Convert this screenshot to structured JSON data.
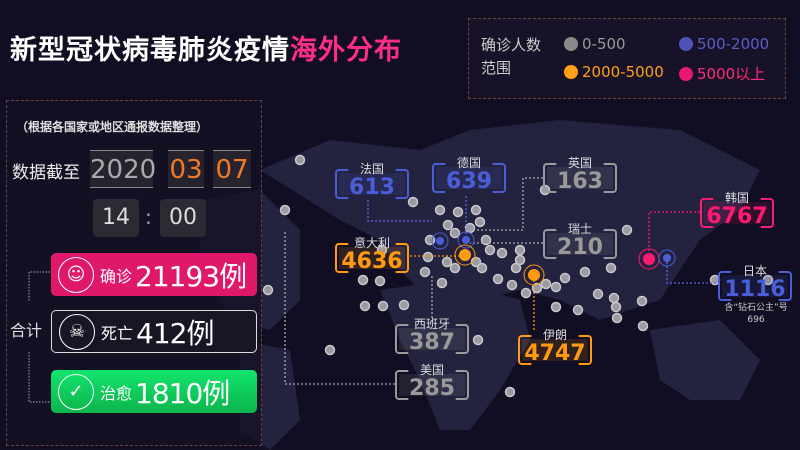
{
  "title": {
    "main": "新型冠状病毒肺炎疫情",
    "highlight": "海外分布"
  },
  "legend": {
    "label": "确诊人数范围",
    "items": [
      {
        "range": "0-500",
        "color": "#8a8a8a"
      },
      {
        "range": "500-2000",
        "color": "#4f52b8"
      },
      {
        "range": "2000-5000",
        "color": "#ffa117"
      },
      {
        "range": "5000以上",
        "color": "#e5196f"
      }
    ]
  },
  "summary": {
    "note": "（根据各国家或地区通报数据整理）",
    "as_of_label": "数据截至",
    "year": "2020",
    "month": "03",
    "day": "07",
    "hour": "14",
    "minute": "00",
    "time_sep": ":",
    "total_label": "合计",
    "confirmed": {
      "label": "确诊",
      "value": "21193例",
      "icon": "patient-face-icon",
      "color": "#e0186a"
    },
    "deaths": {
      "label": "死亡",
      "value": "412例",
      "icon": "skull-icon"
    },
    "recovered": {
      "label": "治愈",
      "value": "1810例",
      "icon": "check-circle-icon",
      "color": "#10c45a"
    }
  },
  "countries": [
    {
      "name": "法国",
      "value": "613",
      "color": "#4a5ed8"
    },
    {
      "name": "德国",
      "value": "639",
      "color": "#4a5ed8"
    },
    {
      "name": "英国",
      "value": "163",
      "color": "#9a9a9a"
    },
    {
      "name": "瑞士",
      "value": "210",
      "color": "#9a9a9a"
    },
    {
      "name": "意大利",
      "value": "4636",
      "color": "#ff9a12"
    },
    {
      "name": "西班牙",
      "value": "387",
      "color": "#9a9a9a"
    },
    {
      "name": "美国",
      "value": "285",
      "color": "#9a9a9a"
    },
    {
      "name": "伊朗",
      "value": "4747",
      "color": "#ff9a12"
    },
    {
      "name": "韩国",
      "value": "6767",
      "color": "#ff1a72"
    },
    {
      "name": "日本",
      "value": "1116",
      "color": "#4a5ed8",
      "note": "含“钻石公主”号",
      "note_value": "696"
    }
  ]
}
